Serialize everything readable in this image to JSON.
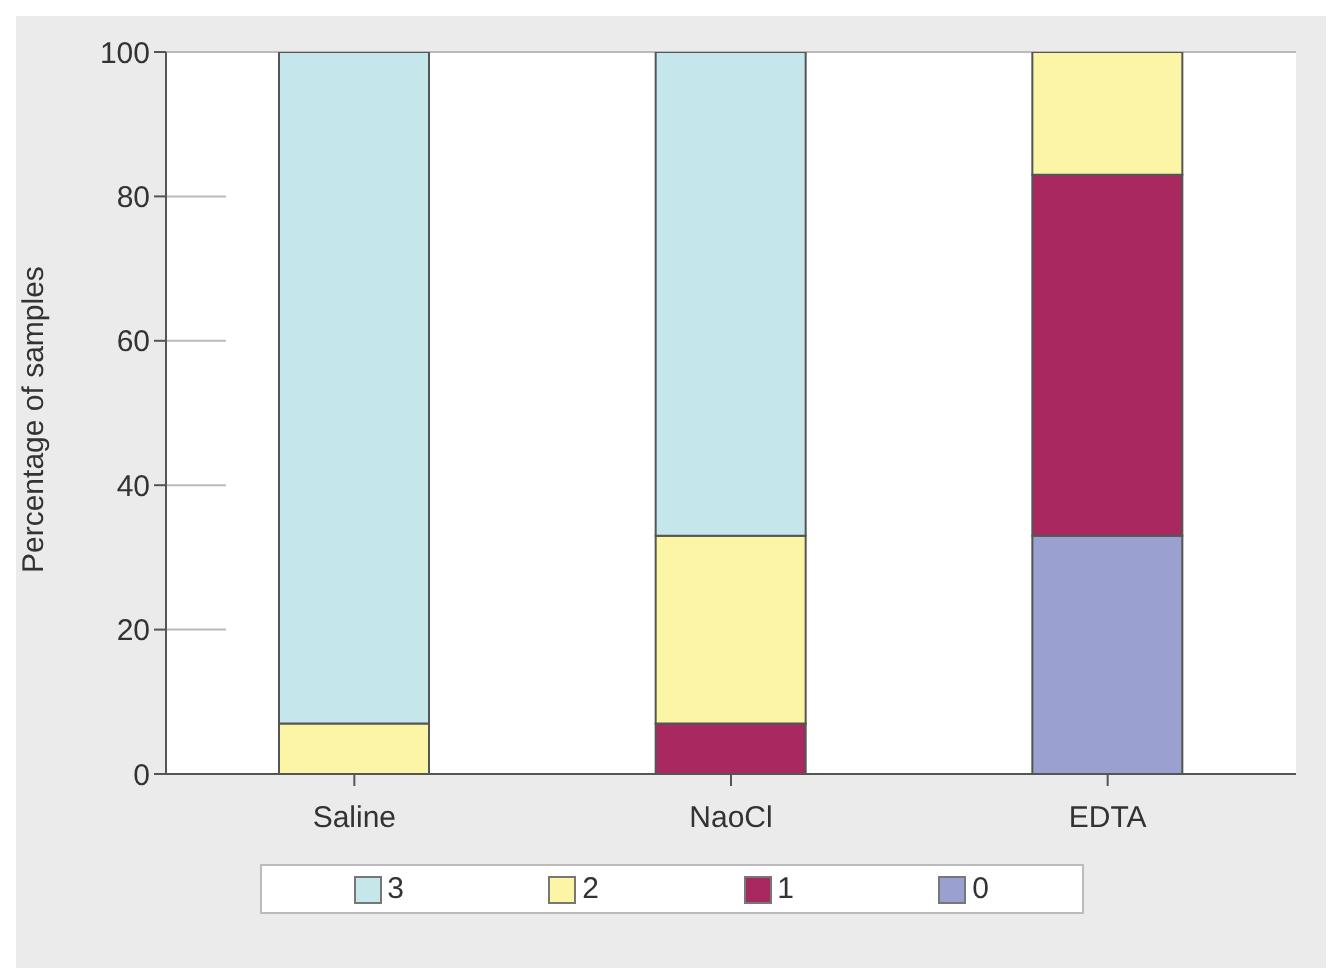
{
  "chart_data": {
    "type": "bar",
    "stacked": true,
    "ylabel": "Percentage of samples",
    "categories": [
      "Saline",
      "NaoCl",
      "EDTA"
    ],
    "series": [
      {
        "name": "0",
        "color": "#9aa0cf",
        "values": [
          0,
          0,
          33
        ]
      },
      {
        "name": "1",
        "color": "#a8285f",
        "values": [
          0,
          7,
          50
        ]
      },
      {
        "name": "2",
        "color": "#fdf5a6",
        "values": [
          7,
          26,
          17
        ]
      },
      {
        "name": "3",
        "color": "#c5e6ea",
        "values": [
          93,
          67,
          0
        ]
      }
    ],
    "ylim": [
      0,
      100
    ],
    "yticks": [
      0,
      20,
      40,
      60,
      80,
      100
    ],
    "grid": "y",
    "legend": "bottom"
  }
}
